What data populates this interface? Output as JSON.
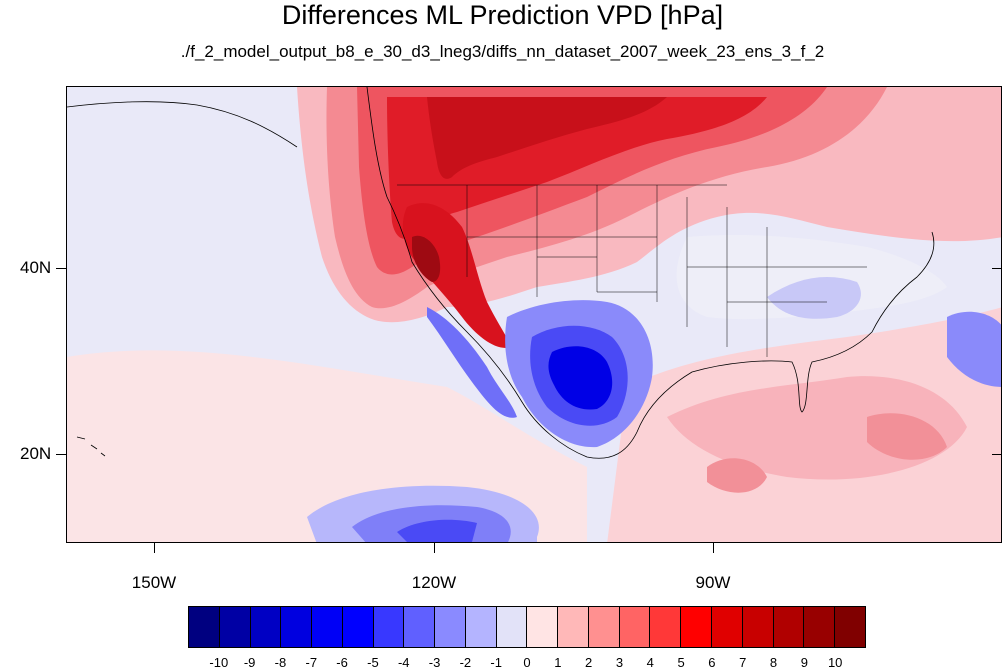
{
  "title": "Differences ML Prediction VPD [hPa]",
  "subtitle": "./f_2_model_output_b8_e_30_d3_lneg3/diffs_nn_dataset_2007_week_23_ens_3_f_2",
  "map": {
    "lat_labels": [
      "40N",
      "20N"
    ],
    "lon_labels": [
      "150W",
      "120W",
      "90W"
    ]
  },
  "colorbar": {
    "colors": [
      "#000080",
      "#0000a4",
      "#0000c4",
      "#0000e0",
      "#0000f6",
      "#0000ff",
      "#3838ff",
      "#6060ff",
      "#8a8aff",
      "#b4b4ff",
      "#e2e2f8",
      "#ffe4e4",
      "#ffb8b8",
      "#ff9090",
      "#ff6464",
      "#ff3838",
      "#ff0000",
      "#e00000",
      "#c80000",
      "#b00000",
      "#980000",
      "#800000"
    ],
    "labels": [
      "-10",
      "-9",
      "-8",
      "-7",
      "-6",
      "-5",
      "-4",
      "-3",
      "-2",
      "-1",
      "0",
      "1",
      "2",
      "3",
      "4",
      "5",
      "6",
      "7",
      "8",
      "9",
      "10"
    ]
  }
}
